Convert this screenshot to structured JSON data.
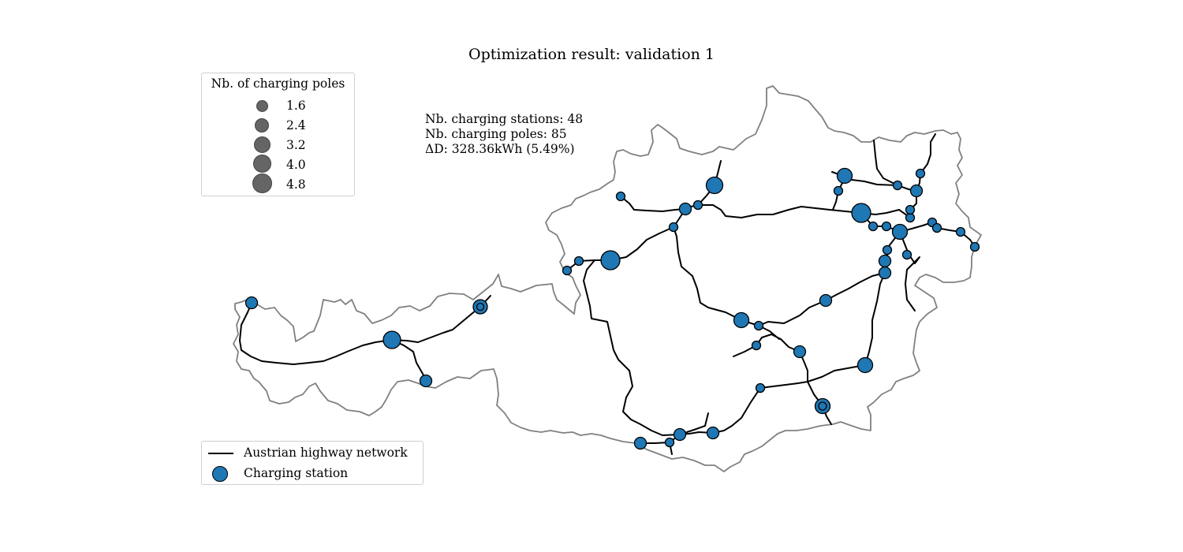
{
  "title": "Optimization result: validation 1",
  "stats": {
    "stations": "Nb. charging stations: 48",
    "poles": "Nb. charging poles: 85",
    "delta": "ΔD: 328.36kWh (5.49%)"
  },
  "size_legend": {
    "title": "Nb. of charging poles",
    "entries": [
      {
        "label": "1.6",
        "value": 1.6
      },
      {
        "label": "2.4",
        "value": 2.4
      },
      {
        "label": "3.2",
        "value": 3.2
      },
      {
        "label": "4.0",
        "value": 4.0
      },
      {
        "label": "4.8",
        "value": 4.8
      }
    ]
  },
  "network_legend": {
    "highway": "Austrian highway network",
    "station": "Charging station"
  },
  "colors": {
    "station": "#1f77b4",
    "highway": "#000000",
    "border": "#808080",
    "size_marker": "#595959"
  }
}
